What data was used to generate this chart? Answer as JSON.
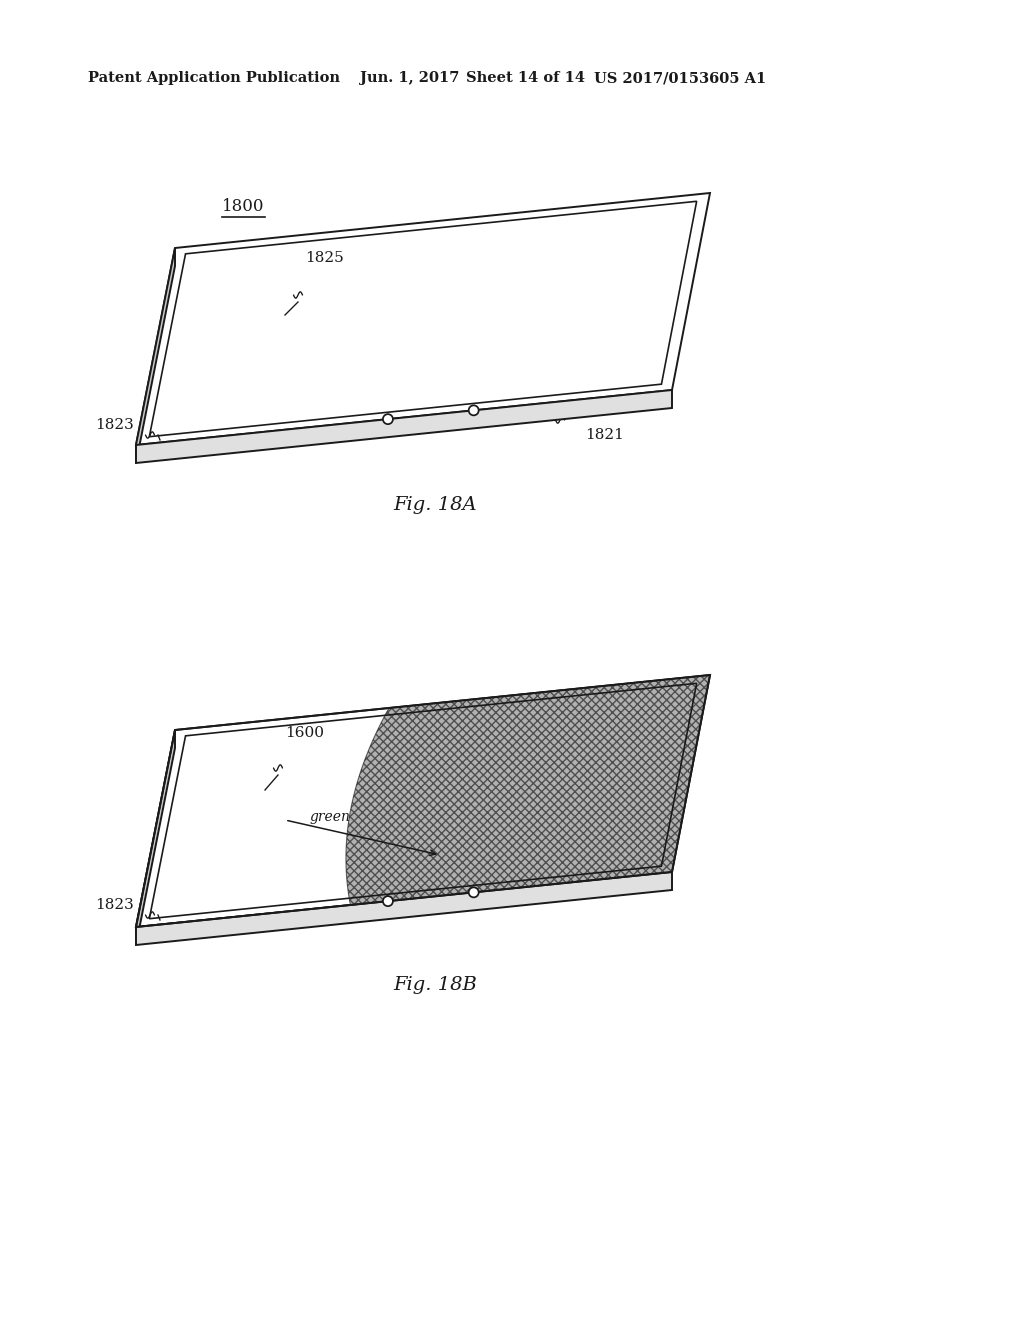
{
  "background_color": "#ffffff",
  "header_text": "Patent Application Publication",
  "header_date": "Jun. 1, 2017",
  "header_sheet": "Sheet 14 of 14",
  "header_patent": "US 2017/0153605 A1",
  "header_font_size": 10.5,
  "fig18a_label": "Fig. 18A",
  "fig18b_label": "Fig. 18B",
  "label_1800": "1800",
  "label_1825": "1825",
  "label_1823_a": "1823",
  "label_1821": "1821",
  "label_1600": "1600",
  "label_1823_b": "1823",
  "label_green": "green",
  "line_color": "#1a1a1a",
  "hatch_color": "#666666"
}
